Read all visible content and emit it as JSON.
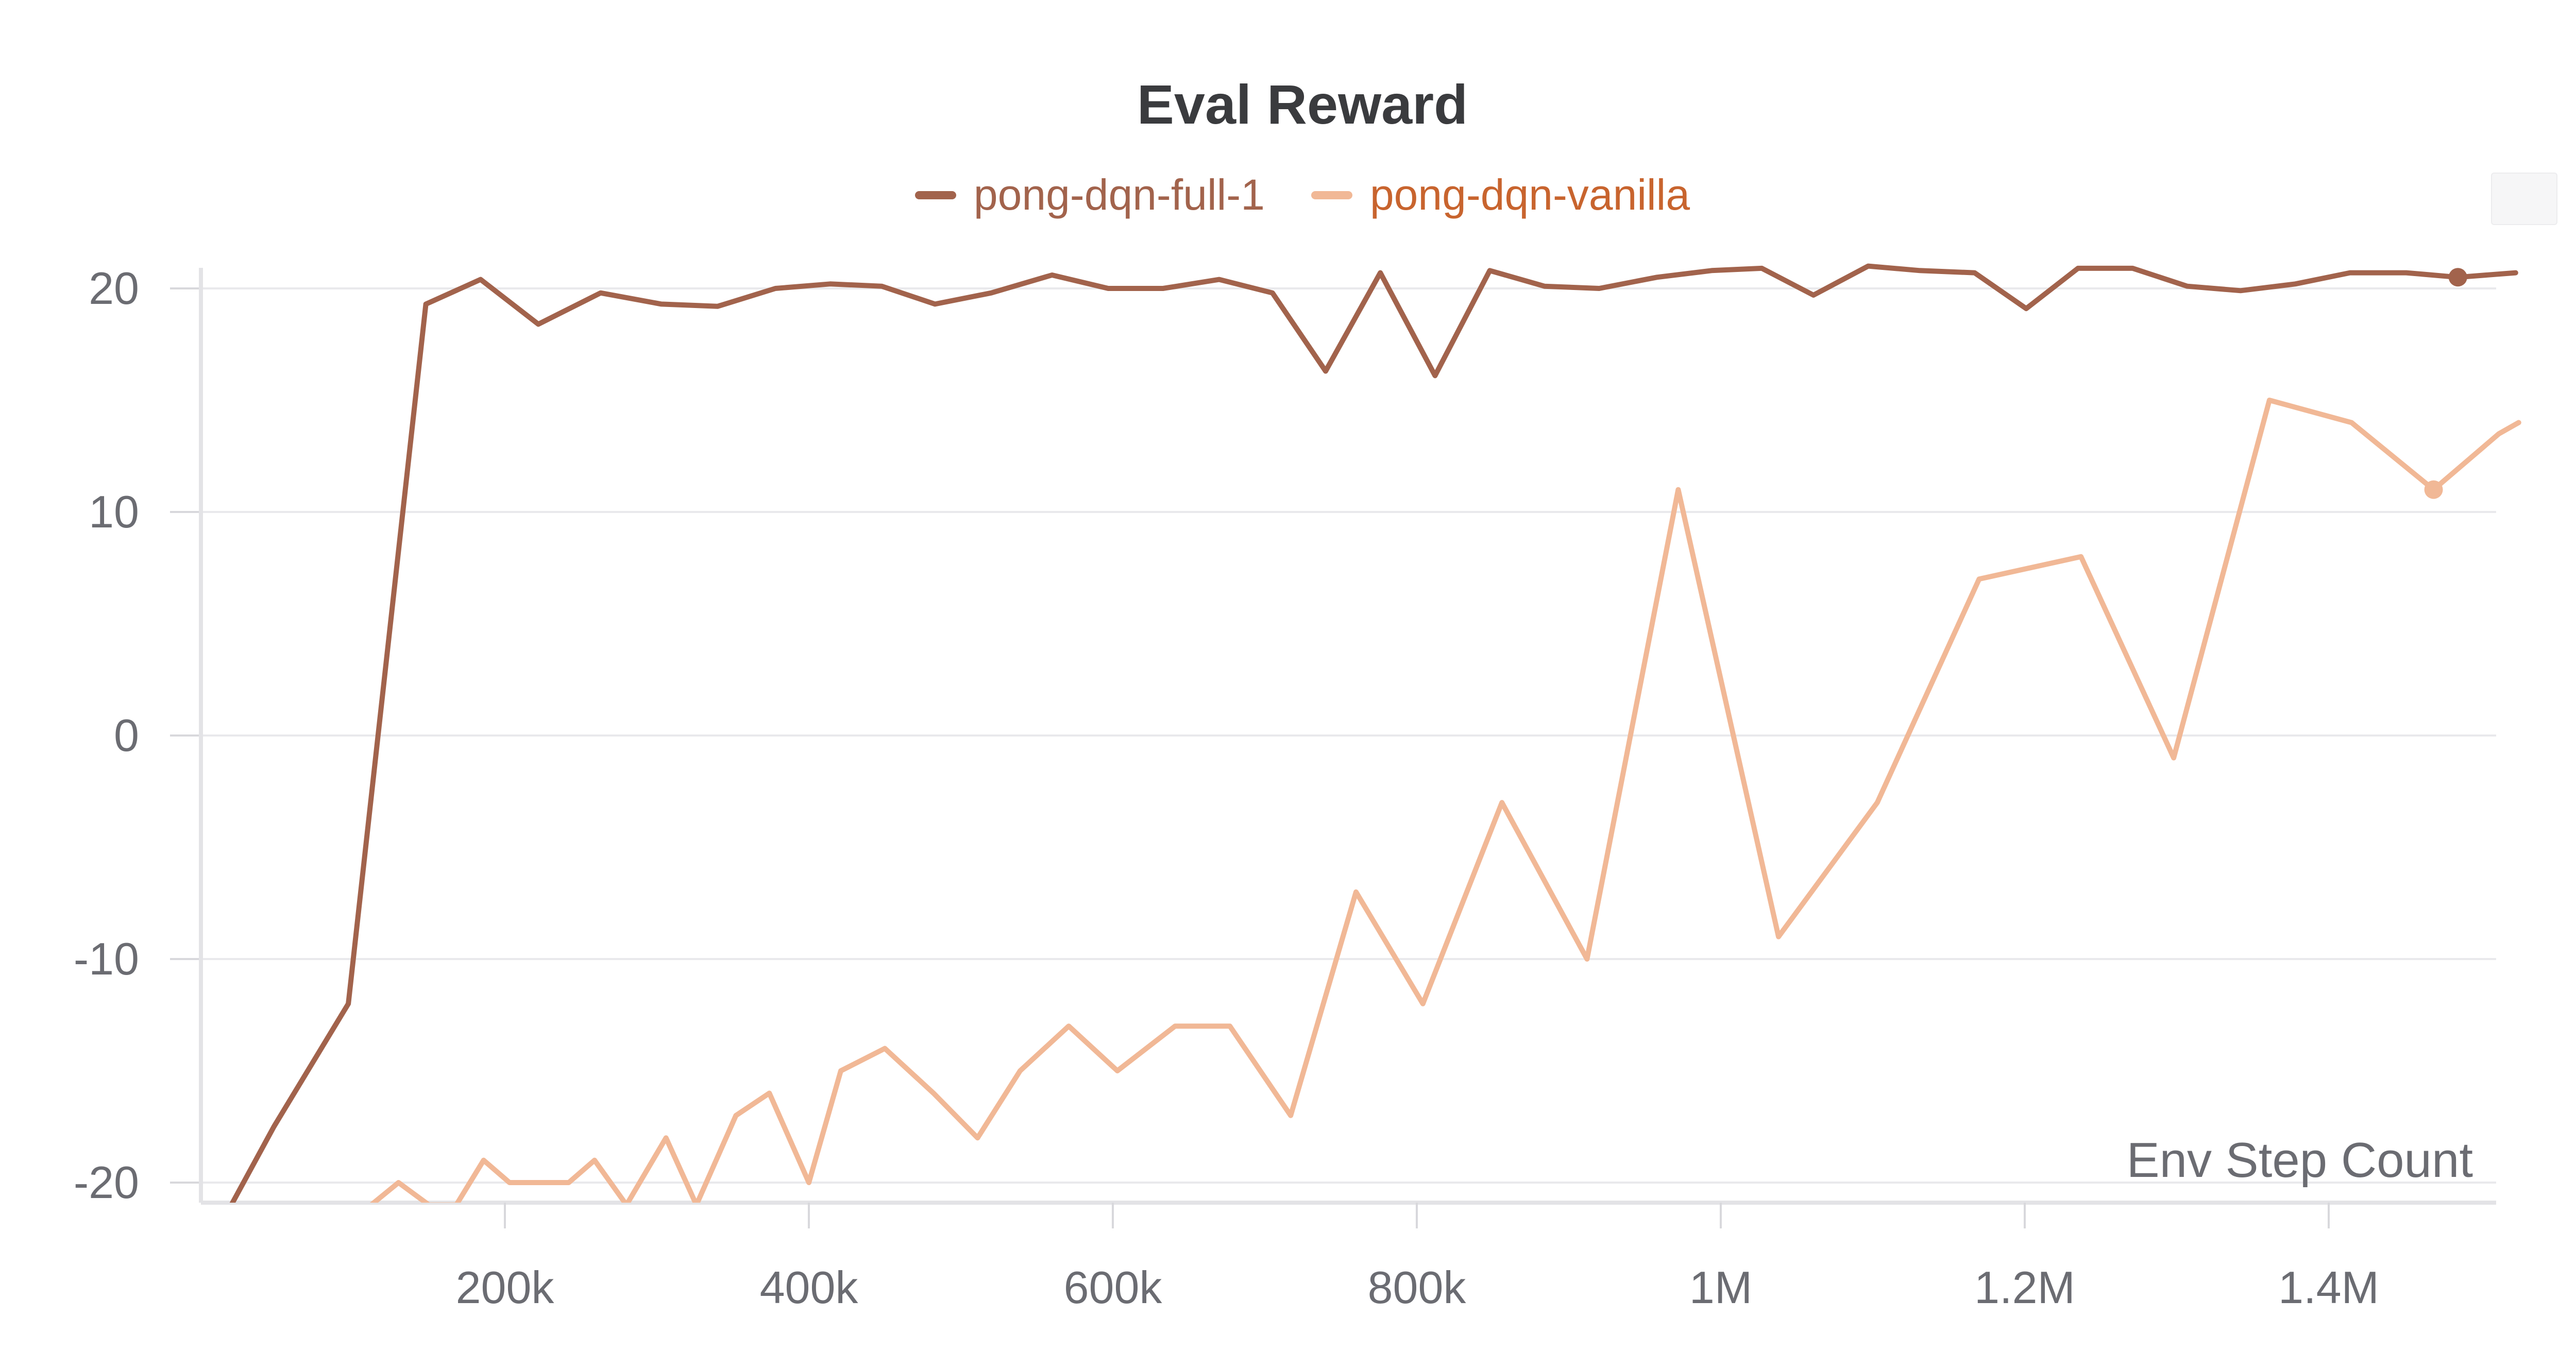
{
  "chart_data": {
    "type": "line",
    "title": "Eval Reward",
    "xlabel": "Env Step Count",
    "ylabel": "",
    "xlim": [
      0,
      1525000
    ],
    "ylim": [
      -21,
      21
    ],
    "grid": true,
    "legend_position": "top-center",
    "x_ticks": [
      {
        "value": 200000,
        "label": "200k"
      },
      {
        "value": 400000,
        "label": "400k"
      },
      {
        "value": 600000,
        "label": "600k"
      },
      {
        "value": 800000,
        "label": "800k"
      },
      {
        "value": 1000000,
        "label": "1M"
      },
      {
        "value": 1200000,
        "label": "1.2M"
      },
      {
        "value": 1400000,
        "label": "1.4M"
      }
    ],
    "y_ticks": [
      {
        "value": 20,
        "label": "20"
      },
      {
        "value": 10,
        "label": "10"
      },
      {
        "value": 0,
        "label": "0"
      },
      {
        "value": -10,
        "label": "-10"
      },
      {
        "value": -20,
        "label": "-20"
      }
    ],
    "series": [
      {
        "name": "pong-dqn-full-1",
        "color": "#a2634c",
        "x": [
          20000,
          48000,
          97000,
          148000,
          184000,
          222000,
          263000,
          303000,
          340000,
          378000,
          414000,
          448000,
          483000,
          520000,
          560000,
          597000,
          633000,
          670000,
          705000,
          740000,
          776000,
          812000,
          848000,
          884000,
          920000,
          958000,
          994000,
          1027000,
          1061000,
          1097000,
          1131000,
          1167000,
          1201000,
          1235000,
          1271000,
          1307000,
          1342000,
          1378000,
          1414000,
          1451000,
          1485000,
          1523000
        ],
        "y": [
          -21,
          -17.5,
          -12,
          19.3,
          20.4,
          18.4,
          19.8,
          19.3,
          19.2,
          20.0,
          20.2,
          20.1,
          19.3,
          19.8,
          20.6,
          20.0,
          20.0,
          20.4,
          19.8,
          16.3,
          20.7,
          16.1,
          20.8,
          20.1,
          20.0,
          20.5,
          20.8,
          20.9,
          19.7,
          21.0,
          20.8,
          20.7,
          19.1,
          20.9,
          20.9,
          20.1,
          19.9,
          20.2,
          20.7,
          20.7,
          20.5,
          20.7
        ]
      },
      {
        "name": "pong-dqn-vanilla",
        "color": "#f1b896",
        "x": [
          112000,
          130000,
          150000,
          168000,
          186000,
          203000,
          242000,
          259000,
          280000,
          306000,
          326000,
          352000,
          374000,
          400000,
          421000,
          450000,
          482000,
          511000,
          539000,
          571000,
          603000,
          641000,
          677000,
          717000,
          760000,
          804000,
          856000,
          912000,
          972000,
          1038000,
          1103000,
          1170000,
          1237000,
          1298000,
          1361000,
          1415000,
          1469000,
          1512000,
          1525000
        ],
        "y": [
          -21,
          -20,
          -21,
          -21,
          -19,
          -20,
          -20,
          -19,
          -21,
          -18,
          -21,
          -17,
          -16,
          -20,
          -15,
          -14,
          -16,
          -18,
          -15,
          -13,
          -15,
          -13,
          -13,
          -17,
          -7,
          -12,
          -3,
          -10,
          11,
          -9,
          -3,
          7,
          8,
          -1,
          15,
          14,
          11,
          13.5,
          14
        ]
      }
    ]
  }
}
